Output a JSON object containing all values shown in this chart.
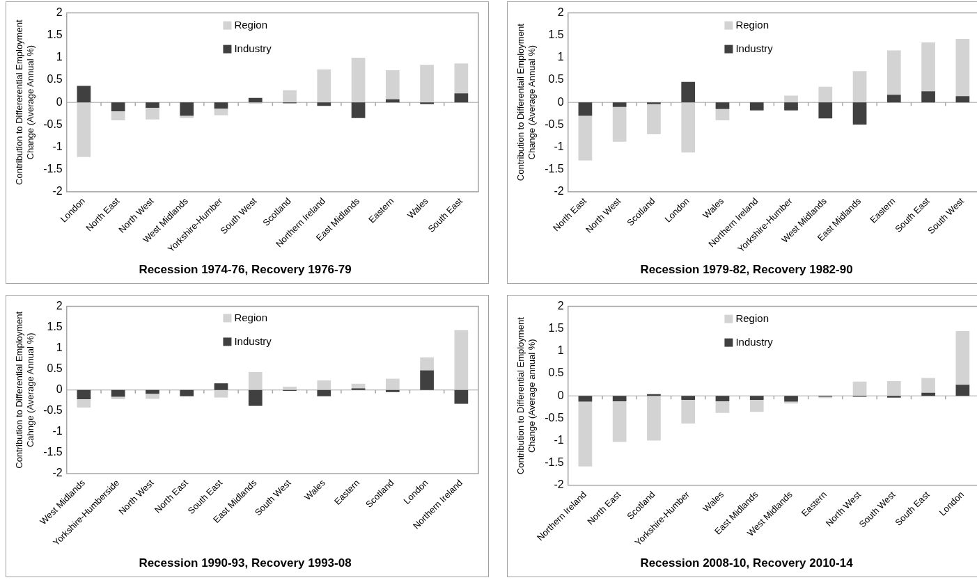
{
  "chart_data": [
    {
      "type": "bar",
      "stacked": true,
      "title": "Recession 1974-76, Recovery 1976-79",
      "ylabel": "Contribution to Differerential Employment Change (Average Annual %)",
      "categories": [
        "London",
        "North East",
        "North West",
        "West Midlands",
        "Yorkshire-Humber",
        "South West",
        "Scotland",
        "Northern Ireland",
        "East Midlands",
        "Eastern",
        "Wales",
        "South East"
      ],
      "series": [
        {
          "name": "Industry",
          "color": "#404040",
          "values": [
            0.37,
            -0.2,
            -0.12,
            -0.3,
            -0.14,
            0.1,
            -0.02,
            -0.08,
            -0.35,
            0.07,
            -0.04,
            0.2
          ]
        },
        {
          "name": "Region",
          "color": "#d3d3d3",
          "values": [
            -1.22,
            -0.2,
            -0.26,
            -0.05,
            -0.15,
            -0.03,
            0.27,
            0.74,
            1.0,
            0.65,
            0.84,
            0.67
          ]
        }
      ],
      "ylim": [
        -2,
        2
      ],
      "yticks": [
        -2,
        -1.5,
        -1,
        -0.5,
        0,
        0.5,
        1,
        1.5,
        2
      ],
      "legend": "top"
    },
    {
      "type": "bar",
      "stacked": true,
      "title": "Recession 1979-82, Recovery 1982-90",
      "ylabel": "Contribution to Differentail Employment Change (Average Annual %)",
      "categories": [
        "North East",
        "North West",
        "Scotland",
        "London",
        "Wales",
        "Northern Ireland",
        "Yorkshire-Humber",
        "West Midlands",
        "East Midlands",
        "Eastern",
        "South East",
        "South West"
      ],
      "series": [
        {
          "name": "Industry",
          "color": "#404040",
          "values": [
            -0.3,
            -0.1,
            -0.04,
            0.46,
            -0.15,
            -0.18,
            -0.18,
            -0.36,
            -0.5,
            0.17,
            0.25,
            0.14
          ]
        },
        {
          "name": "Region",
          "color": "#d3d3d3",
          "values": [
            -1.0,
            -0.78,
            -0.67,
            -1.12,
            -0.25,
            0,
            0.15,
            0.35,
            0.7,
            0.99,
            1.09,
            1.28
          ]
        }
      ],
      "ylim": [
        -2,
        2
      ],
      "yticks": [
        -2,
        -1.5,
        -1,
        -0.5,
        0,
        0.5,
        1,
        1.5,
        2
      ],
      "legend": "top"
    },
    {
      "type": "bar",
      "stacked": true,
      "title": "Recession 1990-93, Recovery 1993-08",
      "ylabel": "Contribution to Differential Employment Cahnge (Average Annual %)",
      "categories": [
        "West Midlands",
        "Yorkshire-Humberside",
        "North West",
        "North East",
        "South East",
        "East Midlands",
        "South West",
        "Wales",
        "Eastern",
        "Scotland",
        "London",
        "Northern Ireland"
      ],
      "series": [
        {
          "name": "Industry",
          "color": "#404040",
          "values": [
            -0.22,
            -0.16,
            -0.09,
            -0.15,
            0.16,
            -0.38,
            -0.02,
            -0.15,
            0.04,
            -0.05,
            0.47,
            -0.33
          ]
        },
        {
          "name": "Region",
          "color": "#d3d3d3",
          "values": [
            -0.2,
            -0.06,
            -0.12,
            0,
            -0.18,
            0.43,
            0.08,
            0.23,
            0.11,
            0.27,
            0.31,
            1.43
          ]
        }
      ],
      "ylim": [
        -2,
        2
      ],
      "yticks": [
        -2,
        -1.5,
        -1,
        -0.5,
        0,
        0.5,
        1,
        1.5,
        2
      ],
      "legend": "top"
    },
    {
      "type": "bar",
      "stacked": true,
      "title": "Recession 2008-10, Recovery 2010-14",
      "ylabel": "Contribution to Differential Employment Change (Average annual %)",
      "categories": [
        "Northern Ireland",
        "North East",
        "Scotland",
        "Yorkshire-Humber",
        "Wales",
        "East Midlands",
        "West Midlands",
        "Eastern",
        "North West",
        "South West",
        "South East",
        "London"
      ],
      "series": [
        {
          "name": "Industry",
          "color": "#404040",
          "values": [
            -0.13,
            -0.12,
            0.04,
            -0.09,
            -0.12,
            -0.09,
            -0.13,
            -0.02,
            -0.02,
            -0.04,
            0.07,
            0.25
          ]
        },
        {
          "name": "Region",
          "color": "#d3d3d3",
          "values": [
            -1.45,
            -0.91,
            -1.0,
            -0.53,
            -0.26,
            -0.27,
            -0.04,
            -0.03,
            0.32,
            0.33,
            0.33,
            1.2
          ]
        }
      ],
      "ylim": [
        -2,
        2
      ],
      "yticks": [
        -2,
        -1.5,
        -1,
        -0.5,
        0,
        0.5,
        1,
        1.5,
        2
      ],
      "legend": "top"
    }
  ]
}
